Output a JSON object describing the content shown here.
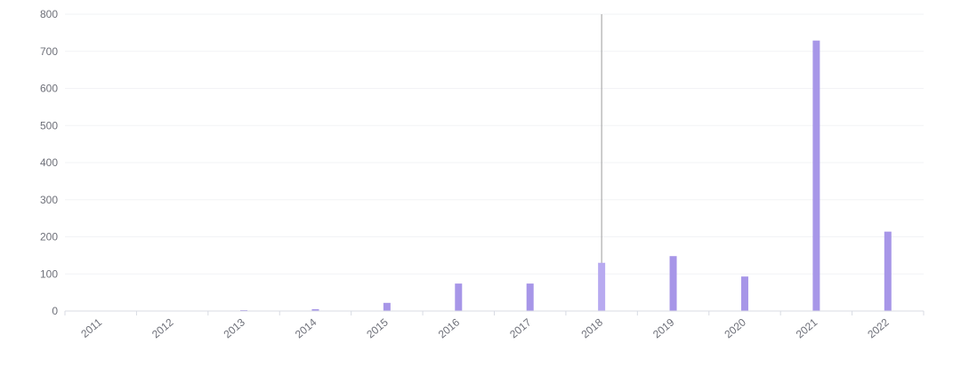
{
  "chart_data": {
    "type": "bar",
    "categories": [
      "2011",
      "2012",
      "2013",
      "2014",
      "2015",
      "2016",
      "2017",
      "2018",
      "2019",
      "2020",
      "2021",
      "2022"
    ],
    "values": [
      0,
      0,
      1,
      5,
      22,
      74,
      74,
      130,
      148,
      93,
      729,
      214
    ],
    "ylim": [
      0,
      800
    ],
    "yticks": [
      "0",
      "100",
      "200",
      "300",
      "400",
      "500",
      "600",
      "700",
      "800"
    ],
    "grid": true,
    "highlighted_category": "2018",
    "bar_color": "#a796e8",
    "highlight_color": "#b8aaf0",
    "gridline_color": "#f2f3f6",
    "axis_color": "#d8dbe3",
    "label_color": "#6e7079",
    "crosshair_color": "#9b9b9b"
  }
}
